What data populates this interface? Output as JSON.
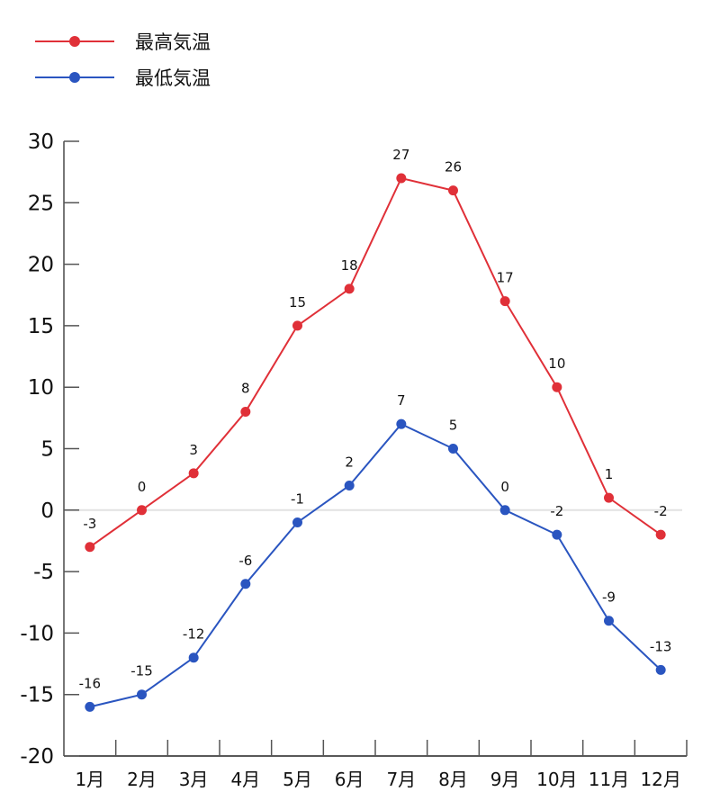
{
  "chart_data": {
    "type": "line",
    "title": "",
    "xlabel": "",
    "ylabel": "",
    "categories": [
      "1月",
      "2月",
      "3月",
      "4月",
      "5月",
      "6月",
      "7月",
      "8月",
      "9月",
      "10月",
      "11月",
      "12月"
    ],
    "series": [
      {
        "name": "最高気温",
        "color": "#e03038",
        "values": [
          -3,
          0,
          3,
          8,
          15,
          18,
          27,
          26,
          17,
          10,
          1,
          -2
        ]
      },
      {
        "name": "最低気温",
        "color": "#2a55c0",
        "values": [
          -16,
          -15,
          -12,
          -6,
          -1,
          2,
          7,
          5,
          0,
          -2,
          -9,
          -13
        ]
      }
    ],
    "ylim": [
      -20,
      30
    ],
    "yticks": [
      30,
      25,
      20,
      15,
      10,
      5,
      0,
      -5,
      -10,
      -15,
      -20
    ],
    "grid": false,
    "zero_line": true,
    "legend_position": "top-left",
    "data_labels": true
  },
  "legend": {
    "items": [
      {
        "label": "最高気温",
        "color": "#e03038"
      },
      {
        "label": "最低気温",
        "color": "#2a55c0"
      }
    ]
  }
}
